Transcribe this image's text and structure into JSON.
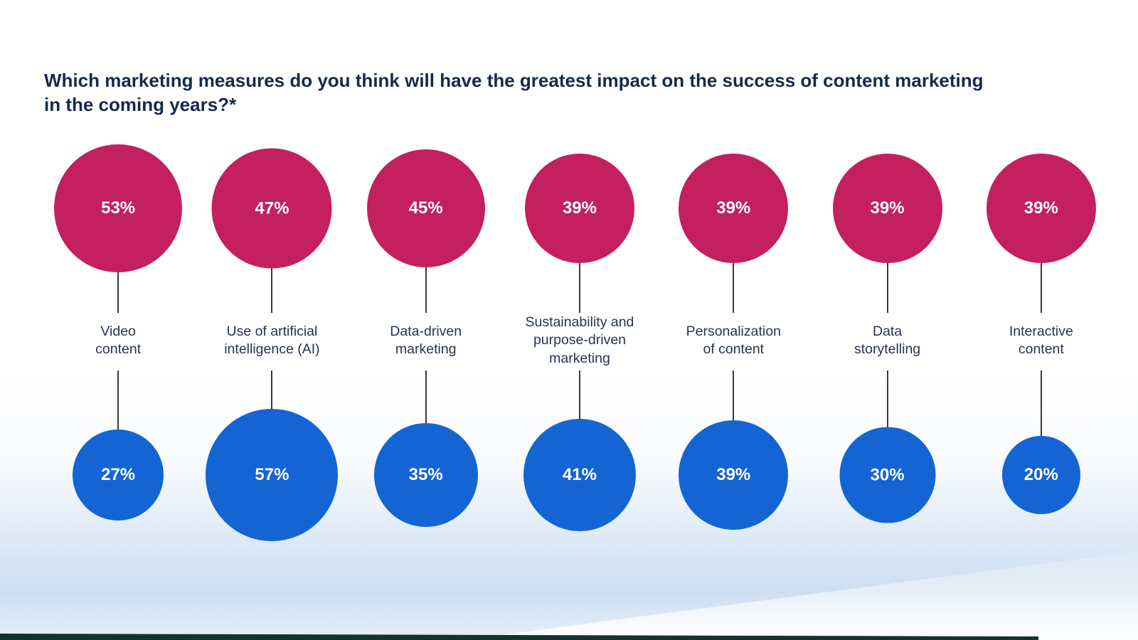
{
  "title": {
    "line1": "Which marketing measures do you think will have the greatest impact on the success of content marketing",
    "line2": "in the coming years?*"
  },
  "chart_data": {
    "type": "bubble",
    "title": "Which marketing measures do you think will have the greatest impact on the success of content marketing in the coming years?*",
    "legend": "none",
    "value_suffix": "%",
    "categories": [
      "Video content",
      "Use of artificial intelligence (AI)",
      "Data-driven marketing",
      "Sustainability and purpose-driven marketing",
      "Personalization of content",
      "Data storytelling",
      "Interactive content"
    ],
    "category_label_lines": [
      [
        "Video",
        "content"
      ],
      [
        "Use of artificial",
        "intelligence (AI)"
      ],
      [
        "Data-driven",
        "marketing"
      ],
      [
        "Sustainability and",
        "purpose-driven",
        "marketing"
      ],
      [
        "Personalization",
        "of content"
      ],
      [
        "Data",
        "storytelling"
      ],
      [
        "Interactive",
        "content"
      ]
    ],
    "series": [
      {
        "name": "Top bubbles",
        "color": "#c41f5e",
        "values_pct": [
          53,
          47,
          45,
          39,
          39,
          39,
          39
        ]
      },
      {
        "name": "Bottom bubbles",
        "color": "#1465d3",
        "values_pct": [
          27,
          57,
          35,
          41,
          39,
          30,
          20
        ]
      }
    ]
  }
}
